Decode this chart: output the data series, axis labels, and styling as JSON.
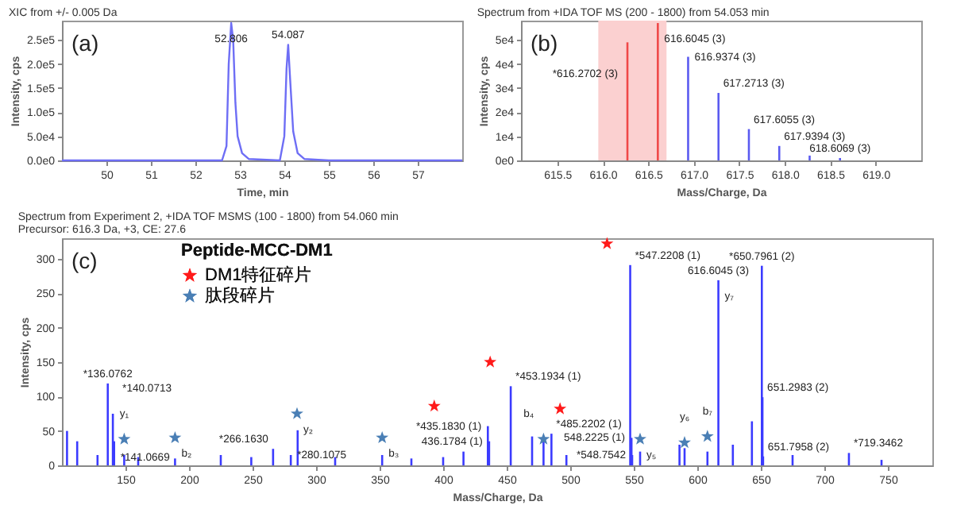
{
  "chart_data": [
    {
      "type": "line",
      "title": "XIC from +/- 0.005 Da",
      "xlabel": "Time, min",
      "ylabel": "Intensity, cps",
      "xlim": [
        49,
        58
      ],
      "xticks": [
        50,
        51,
        52,
        53,
        54,
        55,
        56,
        57
      ],
      "ylim": [
        0,
        290000
      ],
      "yticks": [
        {
          "value": 0,
          "label": "0.0e0"
        },
        {
          "value": 50000,
          "label": "5.0e4"
        },
        {
          "value": 100000,
          "label": "1.0e5"
        },
        {
          "value": 150000,
          "label": "1.5e5"
        },
        {
          "value": 200000,
          "label": "2.0e5"
        },
        {
          "value": 250000,
          "label": "2.5e5"
        }
      ],
      "annotations": [
        "(a)",
        {
          "text": "52.806",
          "x": 52.806,
          "y": 285000
        },
        {
          "text": "54.087",
          "x": 54.087,
          "y": 240000
        }
      ],
      "series": [
        {
          "color": "#6e6ef5",
          "x": [
            49,
            52.6,
            52.7,
            52.75,
            52.806,
            52.85,
            52.9,
            52.95,
            53.05,
            53.2,
            53.9,
            54.0,
            54.05,
            54.087,
            54.13,
            54.2,
            54.3,
            54.45,
            55,
            58
          ],
          "values": [
            0,
            0,
            30000,
            200000,
            285000,
            250000,
            120000,
            50000,
            15000,
            3000,
            0,
            50000,
            190000,
            240000,
            170000,
            60000,
            15000,
            3000,
            0,
            0
          ]
        }
      ]
    },
    {
      "type": "bar",
      "title": "Spectrum from +IDA TOF MS (200 - 1800) from 54.053 min",
      "xlabel": "Mass/Charge, Da",
      "ylabel": "Intensity, cps",
      "xlim": [
        615.1,
        619.5
      ],
      "xticks": [
        615.5,
        {
          "value": 616,
          "label": "616.0"
        },
        616.5,
        {
          "value": 617,
          "label": "617.0"
        },
        617.5,
        {
          "value": 618,
          "label": "618.0"
        },
        618.5,
        {
          "value": 619,
          "label": "619.0"
        }
      ],
      "ylim": [
        0,
        58000
      ],
      "yticks": [
        {
          "value": 0,
          "label": "0e0"
        },
        {
          "value": 10000,
          "label": "1e4"
        },
        {
          "value": 20000,
          "label": "2e4"
        },
        {
          "value": 30000,
          "label": "3e4"
        },
        {
          "value": 40000,
          "label": "4e4"
        },
        {
          "value": 50000,
          "label": "5e4"
        }
      ],
      "annotations": [
        "(b)",
        {
          "text": "*616.2702 (3)",
          "x": 616.2702,
          "y": 49000
        },
        {
          "text": "616.6045 (3)",
          "x": 616.6045,
          "y": 57000
        },
        {
          "text": "616.9374 (3)",
          "x": 616.9374,
          "y": 43000
        },
        {
          "text": "617.2713 (3)",
          "x": 617.2713,
          "y": 28000
        },
        {
          "text": "617.6055 (3)",
          "x": 617.6055,
          "y": 13000
        },
        {
          "text": "617.9394 (3)",
          "x": 617.9394,
          "y": 6000
        },
        {
          "text": "618.6069 (3)",
          "x": 618.6069,
          "y": 1000
        }
      ],
      "bands": [
        {
          "axis": "x",
          "from": 615.95,
          "to": 616.7,
          "color": "#fbd0d0"
        }
      ],
      "x": [
        616.2702,
        616.6045,
        616.9374,
        617.2713,
        617.6055,
        617.9394,
        618.2733,
        618.6069
      ],
      "values": [
        49000,
        57000,
        43000,
        28000,
        13000,
        6000,
        2000,
        1000
      ],
      "colors": [
        "#f04848",
        "#f04848",
        "#5a5af0",
        "#5a5af0",
        "#5a5af0",
        "#5a5af0",
        "#5a5af0",
        "#5a5af0"
      ]
    },
    {
      "type": "bar",
      "title": "Spectrum from Experiment 2, +IDA TOF MSMS (100 - 1800) from 54.060 min",
      "subtitle": "Precursor: 616.3 Da, +3, CE: 27.6",
      "xlabel": "Mass/Charge, Da",
      "ylabel": "Intensity, cps",
      "xlim": [
        100,
        785
      ],
      "xticks": [
        150,
        200,
        250,
        300,
        350,
        400,
        450,
        500,
        550,
        600,
        650,
        700,
        750
      ],
      "ylim": [
        0,
        330
      ],
      "yticks": [
        0,
        50,
        100,
        150,
        200,
        250,
        300
      ],
      "legend": "top left",
      "legend_title": "Peptide-MCC-DM1",
      "marker": "star",
      "annotations": [
        "(c)",
        {
          "text": "*136.0762",
          "x": 136.0762,
          "y": 119
        },
        {
          "text": "*140.0713",
          "x": 140.0713,
          "y": 75
        },
        {
          "text": "*141.0669",
          "x": 141.0669,
          "y": 35
        },
        {
          "text": "*266.1630",
          "x": 266.163,
          "y": 24
        },
        {
          "text": "*280.1075",
          "x": 280.1075,
          "y": 15
        },
        {
          "text": "*435.1830 (1)",
          "x": 435.183,
          "y": 57
        },
        {
          "text": "436.1784 (1)",
          "x": 436.1784,
          "y": 35
        },
        {
          "text": "*453.1934 (1)",
          "x": 453.1934,
          "y": 115
        },
        {
          "text": "*485.2202 (1)",
          "x": 485.2202,
          "y": 46
        },
        {
          "text": "*547.2208 (1)",
          "x": 547.2208,
          "y": 291
        },
        {
          "text": "548.2225 (1)",
          "x": 548.2225,
          "y": 40
        },
        {
          "text": "*548.7542",
          "x": 548.7542,
          "y": 15
        },
        {
          "text": "616.6045 (3)",
          "x": 616.6045,
          "y": 269
        },
        {
          "text": "y₇",
          "x": 616.6045,
          "y": 269
        },
        {
          "text": "*650.7961 (2)",
          "x": 650.7961,
          "y": 290
        },
        {
          "text": "651.2983 (2)",
          "x": 651.2983,
          "y": 99
        },
        {
          "text": "651.7958 (2)",
          "x": 651.7958,
          "y": 13
        },
        {
          "text": "*719.3462",
          "x": 719.3462,
          "y": 18
        },
        {
          "text": "y₁",
          "x": 149,
          "y": 38
        },
        {
          "text": "b₂",
          "x": 189,
          "y": 40
        },
        {
          "text": "y₂",
          "x": 285,
          "y": 75
        },
        {
          "text": "b₃",
          "x": 352,
          "y": 40
        },
        {
          "text": "b₄",
          "x": 479,
          "y": 38
        },
        {
          "text": "y₅",
          "x": 555,
          "y": 38
        },
        {
          "text": "y₆",
          "x": 590,
          "y": 33
        },
        {
          "text": "b₇",
          "x": 608,
          "y": 42
        }
      ],
      "series": [
        {
          "color": "#3b3bff",
          "x": [
            104,
            112,
            128,
            136.0762,
            140.0713,
            141.0669,
            149,
            160,
            189,
            225,
            249,
            266.163,
            280.1075,
            285.5,
            315,
            352,
            375,
            400,
            416,
            435.183,
            436.1784,
            453.1934,
            470,
            479,
            485.2202,
            497,
            547.2208,
            548.2225,
            548.7542,
            555,
            586,
            590,
            608,
            616.6045,
            628,
            643,
            650.7961,
            651.2983,
            651.7958,
            675,
            719.3462,
            745
          ],
          "values": [
            50,
            35,
            15,
            119,
            75,
            35,
            15,
            12,
            10,
            15,
            12,
            24,
            15,
            51,
            12,
            15,
            10,
            12,
            20,
            57,
            35,
            115,
            42,
            38,
            46,
            15,
            291,
            40,
            15,
            20,
            30,
            25,
            20,
            269,
            30,
            64,
            290,
            99,
            13,
            15,
            18,
            8
          ]
        },
        {
          "type": "scatter",
          "name": "DM1特征碎片",
          "color": "#ff1a1a",
          "x": [
            393,
            437,
            492,
            529
          ],
          "values": [
            86,
            150,
            82,
            322
          ]
        },
        {
          "type": "scatter",
          "name": "肽段碎片",
          "color": "#4a7fb5",
          "x": [
            149,
            189,
            285,
            352,
            479,
            555,
            590,
            608
          ],
          "values": [
            38,
            40,
            75,
            40,
            38,
            38,
            33,
            42
          ]
        }
      ]
    }
  ]
}
